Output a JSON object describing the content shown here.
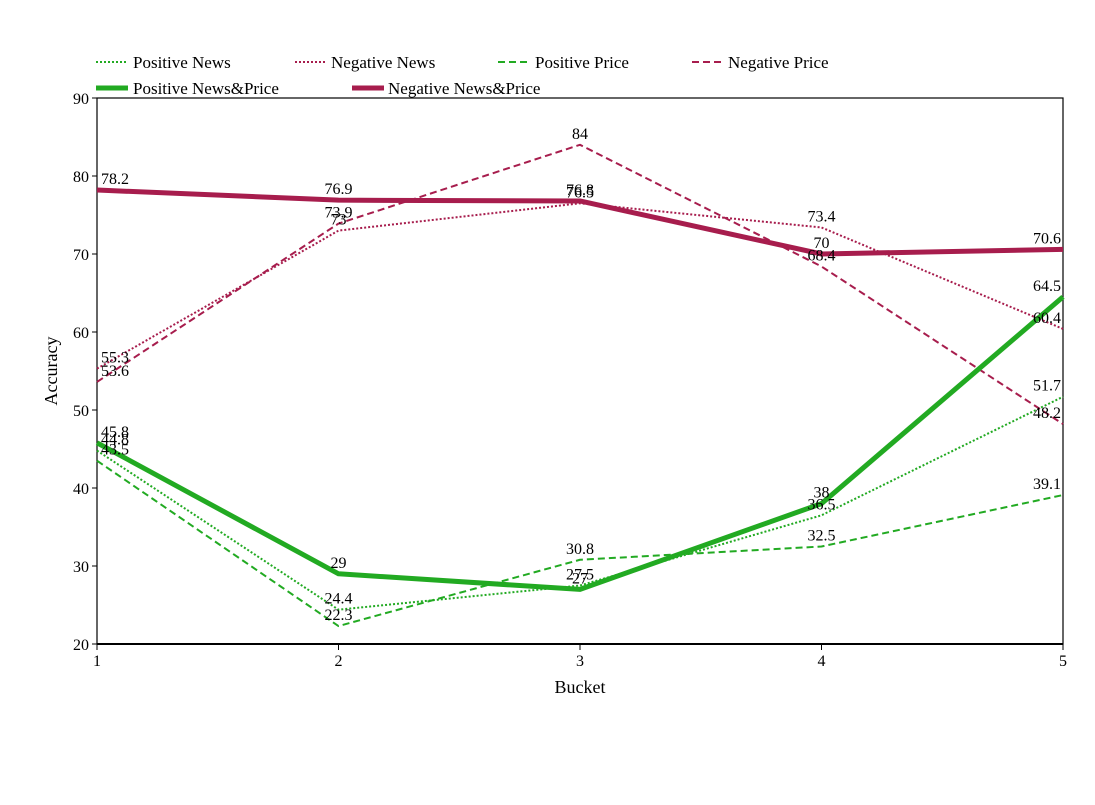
{
  "chart_data": {
    "type": "line",
    "xlabel": "Bucket",
    "ylabel": "Accuracy",
    "x": [
      1,
      2,
      3,
      4,
      5
    ],
    "ylim": [
      20,
      90
    ],
    "yticks": [
      20,
      30,
      40,
      50,
      60,
      70,
      80,
      90
    ],
    "xticks": [
      1,
      2,
      3,
      4,
      5
    ],
    "grid": false,
    "legend_position": "top",
    "series": [
      {
        "name": "Positive News",
        "values": [
          44.8,
          24.4,
          27.5,
          36.5,
          51.7
        ],
        "color": "#22aa22",
        "style": "dotted"
      },
      {
        "name": "Negative News",
        "values": [
          55.3,
          73.0,
          76.5,
          73.4,
          60.4
        ],
        "color": "#a71d4d",
        "style": "dotted"
      },
      {
        "name": "Positive Price",
        "values": [
          43.5,
          22.3,
          30.8,
          32.5,
          39.1
        ],
        "color": "#22aa22",
        "style": "dashed"
      },
      {
        "name": "Negative Price",
        "values": [
          53.6,
          73.9,
          84.0,
          68.4,
          48.2
        ],
        "color": "#a71d4d",
        "style": "dashed"
      },
      {
        "name": "Positive News&Price",
        "values": [
          45.8,
          29.0,
          27.0,
          38.0,
          64.5
        ],
        "color": "#22aa22",
        "style": "solid-thick"
      },
      {
        "name": "Negative News&Price",
        "values": [
          78.2,
          76.9,
          76.8,
          70.0,
          70.6
        ],
        "color": "#a71d4d",
        "style": "solid-thick"
      }
    ]
  }
}
